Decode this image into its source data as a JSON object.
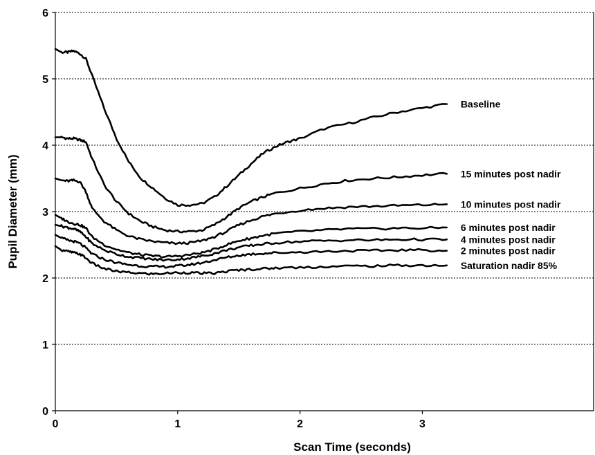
{
  "chart_data": {
    "type": "line",
    "title": "",
    "xlabel": "Scan Time (seconds)",
    "ylabel": "Pupil Diameter (mm)",
    "xlim": [
      0,
      4.4
    ],
    "ylim": [
      0,
      6
    ],
    "xticks": [
      0,
      1,
      2,
      3
    ],
    "yticks": [
      0,
      1,
      2,
      3,
      4,
      5,
      6
    ],
    "grid": "horizontal-dotted",
    "legend": "labels-at-line-ends",
    "line_color": "#000000",
    "series": [
      {
        "name": "Baseline",
        "x": [
          0,
          0.05,
          0.1,
          0.15,
          0.2,
          0.25,
          0.3,
          0.4,
          0.5,
          0.6,
          0.7,
          0.8,
          0.9,
          1.0,
          1.1,
          1.2,
          1.3,
          1.4,
          1.5,
          1.6,
          1.7,
          1.8,
          1.9,
          2.0,
          2.2,
          2.4,
          2.6,
          2.8,
          3.0,
          3.2
        ],
        "y": [
          5.45,
          5.4,
          5.4,
          5.42,
          5.38,
          5.3,
          5.05,
          4.55,
          4.1,
          3.75,
          3.5,
          3.35,
          3.2,
          3.1,
          3.1,
          3.12,
          3.22,
          3.38,
          3.55,
          3.72,
          3.88,
          3.98,
          4.05,
          4.1,
          4.25,
          4.33,
          4.42,
          4.5,
          4.56,
          4.62
        ]
      },
      {
        "name": "15 minutes post nadir",
        "x": [
          0,
          0.05,
          0.1,
          0.15,
          0.2,
          0.25,
          0.3,
          0.4,
          0.5,
          0.6,
          0.7,
          0.8,
          0.9,
          1.0,
          1.1,
          1.2,
          1.3,
          1.4,
          1.5,
          1.6,
          1.7,
          1.8,
          2.0,
          2.2,
          2.4,
          2.6,
          2.8,
          3.0,
          3.2
        ],
        "y": [
          4.12,
          4.12,
          4.1,
          4.1,
          4.08,
          4.05,
          3.8,
          3.4,
          3.15,
          2.97,
          2.85,
          2.77,
          2.72,
          2.7,
          2.7,
          2.72,
          2.8,
          2.92,
          3.05,
          3.15,
          3.22,
          3.28,
          3.35,
          3.42,
          3.47,
          3.5,
          3.52,
          3.55,
          3.57
        ]
      },
      {
        "name": "10 minutes post nadir",
        "x": [
          0,
          0.05,
          0.1,
          0.15,
          0.2,
          0.25,
          0.3,
          0.4,
          0.5,
          0.6,
          0.7,
          0.8,
          0.9,
          1.0,
          1.1,
          1.2,
          1.3,
          1.4,
          1.5,
          1.6,
          1.7,
          1.8,
          2.0,
          2.2,
          2.4,
          2.6,
          2.8,
          3.0,
          3.2
        ],
        "y": [
          3.5,
          3.47,
          3.46,
          3.47,
          3.45,
          3.3,
          3.05,
          2.85,
          2.72,
          2.63,
          2.58,
          2.55,
          2.53,
          2.52,
          2.53,
          2.56,
          2.62,
          2.7,
          2.8,
          2.87,
          2.93,
          2.97,
          3.02,
          3.05,
          3.07,
          3.08,
          3.09,
          3.1,
          3.11
        ]
      },
      {
        "name": "6 minutes post nadir",
        "x": [
          0,
          0.05,
          0.1,
          0.15,
          0.2,
          0.25,
          0.3,
          0.4,
          0.5,
          0.6,
          0.7,
          0.8,
          0.9,
          1.0,
          1.1,
          1.2,
          1.3,
          1.4,
          1.5,
          1.6,
          1.7,
          1.8,
          2.0,
          2.2,
          2.4,
          2.6,
          2.8,
          3.0,
          3.2
        ],
        "y": [
          2.95,
          2.9,
          2.85,
          2.82,
          2.8,
          2.75,
          2.62,
          2.5,
          2.43,
          2.38,
          2.35,
          2.33,
          2.32,
          2.33,
          2.35,
          2.38,
          2.43,
          2.5,
          2.56,
          2.6,
          2.64,
          2.67,
          2.7,
          2.72,
          2.74,
          2.74,
          2.75,
          2.75,
          2.76
        ]
      },
      {
        "name": "4 minutes post nadir",
        "x": [
          0,
          0.05,
          0.1,
          0.15,
          0.2,
          0.25,
          0.3,
          0.4,
          0.5,
          0.6,
          0.7,
          0.8,
          0.9,
          1.0,
          1.1,
          1.2,
          1.3,
          1.4,
          1.5,
          1.6,
          1.7,
          1.8,
          2.0,
          2.2,
          2.4,
          2.6,
          2.8,
          3.0,
          3.2
        ],
        "y": [
          2.8,
          2.78,
          2.76,
          2.74,
          2.7,
          2.62,
          2.52,
          2.42,
          2.36,
          2.32,
          2.3,
          2.28,
          2.27,
          2.28,
          2.3,
          2.33,
          2.37,
          2.42,
          2.46,
          2.49,
          2.51,
          2.53,
          2.55,
          2.56,
          2.57,
          2.57,
          2.58,
          2.58,
          2.58
        ]
      },
      {
        "name": "2 minutes post nadir",
        "x": [
          0,
          0.05,
          0.1,
          0.15,
          0.2,
          0.25,
          0.3,
          0.4,
          0.5,
          0.6,
          0.7,
          0.8,
          0.9,
          1.0,
          1.1,
          1.2,
          1.3,
          1.4,
          1.5,
          1.6,
          1.7,
          1.8,
          2.0,
          2.2,
          2.4,
          2.6,
          2.8,
          3.0,
          3.2
        ],
        "y": [
          2.65,
          2.6,
          2.57,
          2.55,
          2.52,
          2.45,
          2.36,
          2.28,
          2.23,
          2.2,
          2.18,
          2.17,
          2.17,
          2.18,
          2.2,
          2.23,
          2.27,
          2.31,
          2.34,
          2.36,
          2.37,
          2.38,
          2.39,
          2.4,
          2.41,
          2.41,
          2.42,
          2.42,
          2.41
        ]
      },
      {
        "name": "Saturation nadir 85%",
        "x": [
          0,
          0.05,
          0.1,
          0.15,
          0.2,
          0.25,
          0.3,
          0.4,
          0.5,
          0.6,
          0.7,
          0.8,
          0.9,
          1.0,
          1.1,
          1.2,
          1.3,
          1.4,
          1.5,
          1.6,
          1.7,
          1.8,
          2.0,
          2.2,
          2.4,
          2.6,
          2.8,
          3.0,
          3.2
        ],
        "y": [
          2.48,
          2.42,
          2.4,
          2.38,
          2.36,
          2.3,
          2.22,
          2.14,
          2.1,
          2.08,
          2.07,
          2.06,
          2.07,
          2.08,
          2.08,
          2.07,
          2.07,
          2.1,
          2.12,
          2.13,
          2.14,
          2.15,
          2.16,
          2.17,
          2.18,
          2.18,
          2.19,
          2.19,
          2.19
        ]
      }
    ]
  }
}
